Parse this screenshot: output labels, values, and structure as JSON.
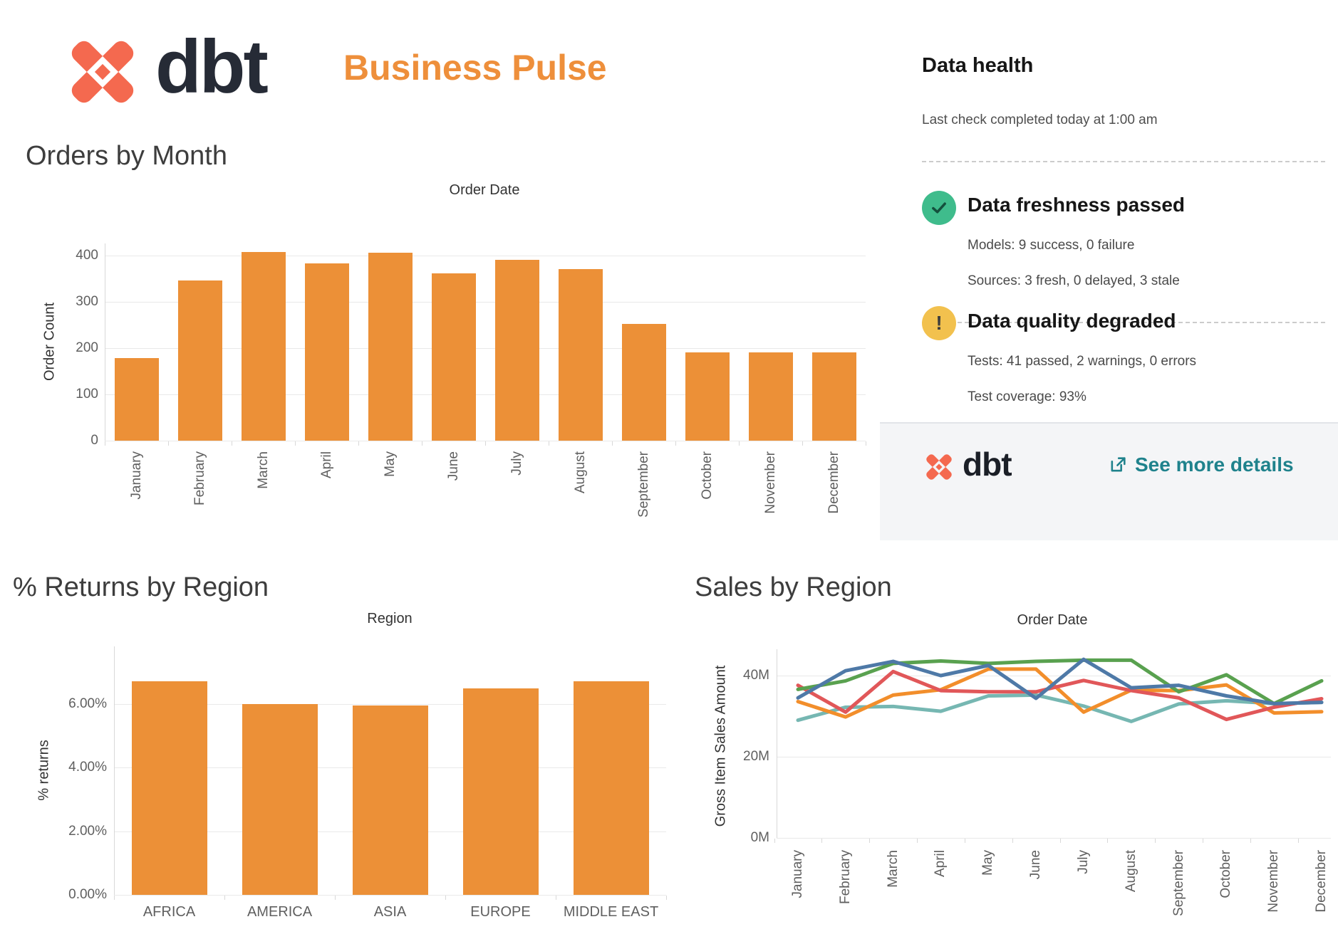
{
  "header": {
    "brand": "dbt",
    "title": "Business Pulse"
  },
  "data_health": {
    "title": "Data health",
    "subtitle": "Last check completed today at 1:00 am",
    "items": [
      {
        "status": "passed",
        "icon": "check-icon",
        "title": "Data freshness passed",
        "lines": [
          "Models: 9 success, 0 failure",
          "Sources: 3 fresh, 0 delayed, 3 stale"
        ]
      },
      {
        "status": "warning",
        "icon": "exclamation-icon",
        "title": "Data quality degraded",
        "lines": [
          "Tests: 41 passed, 2 warnings, 0 errors",
          "Test coverage: 93%"
        ]
      }
    ],
    "footer": {
      "brand": "dbt",
      "link_label": "See more details"
    }
  },
  "colors": {
    "brand_coral": "#F4694F",
    "title_orange": "#EE8F3B",
    "bar_orange": "#EC9037",
    "link_teal": "#1F828C",
    "success_green": "#3FBC8C",
    "warning_yellow": "#F2C14E",
    "check_stroke": "#14503D"
  },
  "chart_data": [
    {
      "id": "orders",
      "type": "bar",
      "title": "Orders by Month",
      "inner_title": "Order Date",
      "ylabel": "Order Count",
      "xlabel": "",
      "categories": [
        "January",
        "February",
        "March",
        "April",
        "May",
        "June",
        "July",
        "August",
        "September",
        "October",
        "November",
        "December"
      ],
      "values": [
        178,
        346,
        408,
        383,
        406,
        362,
        391,
        371,
        253,
        191,
        191,
        191
      ],
      "ytick_values": [
        0,
        100,
        200,
        300,
        400
      ],
      "ytick_labels": [
        "0",
        "100",
        "200",
        "300",
        "400"
      ],
      "ylim": [
        0,
        430
      ],
      "grid": true,
      "color": "#EC9037"
    },
    {
      "id": "returns",
      "type": "bar",
      "title": "% Returns by Region",
      "inner_title": "Region",
      "ylabel": "% returns",
      "xlabel": "",
      "categories": [
        "AFRICA",
        "AMERICA",
        "ASIA",
        "EUROPE",
        "MIDDLE EAST"
      ],
      "values": [
        6.73,
        6.01,
        5.96,
        6.49,
        6.73
      ],
      "ytick_values": [
        0,
        2,
        4,
        6
      ],
      "ytick_labels": [
        "0.00%",
        "2.00%",
        "4.00%",
        "6.00%"
      ],
      "ylim": [
        0,
        7.8
      ],
      "grid": true,
      "color": "#EC9037"
    },
    {
      "id": "sales",
      "type": "line",
      "title": "Sales by Region",
      "inner_title": "Order Date",
      "ylabel": "Gross Item Sales Amount",
      "xlabel": "",
      "categories": [
        "January",
        "February",
        "March",
        "April",
        "May",
        "June",
        "July",
        "August",
        "September",
        "October",
        "November",
        "December"
      ],
      "series": [
        {
          "name": "teal",
          "color": "#76B7B2",
          "values": [
            29.0,
            32.2,
            32.4,
            31.2,
            35.0,
            35.2,
            32.5,
            28.7,
            33.0,
            33.8,
            33.1,
            33.4
          ]
        },
        {
          "name": "orange",
          "color": "#F28E2B",
          "values": [
            33.6,
            29.8,
            35.2,
            36.5,
            41.6,
            41.6,
            31.0,
            36.4,
            36.3,
            37.7,
            30.8,
            31.1
          ]
        },
        {
          "name": "red",
          "color": "#E15759",
          "values": [
            37.6,
            31.0,
            41.0,
            36.3,
            36.0,
            36.0,
            38.8,
            36.3,
            34.5,
            29.2,
            32.2,
            34.3
          ]
        },
        {
          "name": "green",
          "color": "#59A14F",
          "values": [
            36.6,
            38.7,
            43.0,
            43.6,
            43.0,
            43.5,
            43.8,
            43.8,
            36.0,
            40.2,
            33.1,
            38.7
          ]
        },
        {
          "name": "blue",
          "color": "#4E79A7",
          "values": [
            34.5,
            41.2,
            43.5,
            40.0,
            42.5,
            34.4,
            44.0,
            37.0,
            37.6,
            35.0,
            33.1,
            33.4
          ]
        }
      ],
      "ytick_values": [
        0,
        20,
        40
      ],
      "ytick_labels": [
        "0M",
        "20M",
        "40M"
      ],
      "ylim": [
        0,
        46.5
      ],
      "legend": "none",
      "grid": true,
      "units": "M"
    }
  ]
}
